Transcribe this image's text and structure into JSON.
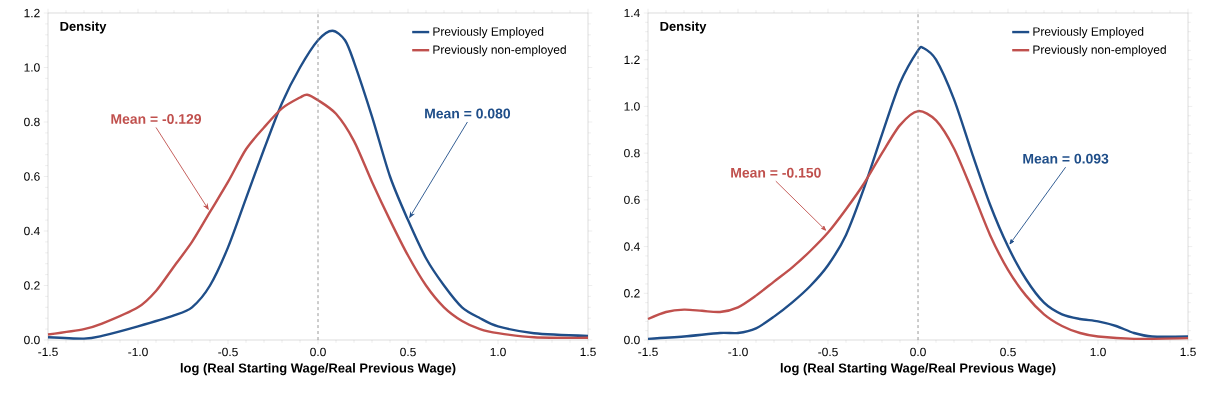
{
  "chart_data": [
    {
      "type": "line",
      "ylabel": "Density",
      "xlabel": "log (Real Starting Wage/Real Previous Wage)",
      "xlim": [
        -1.5,
        1.5
      ],
      "xticks": [
        {
          "value": -1.5,
          "label": "-1.5"
        },
        {
          "value": -1.0,
          "label": "-1.0"
        },
        {
          "value": -0.5,
          "label": "-0.5"
        },
        {
          "value": 0.0,
          "label": "0.0"
        },
        {
          "value": 0.5,
          "label": "0.5"
        },
        {
          "value": 1.0,
          "label": "1.0"
        },
        {
          "value": 1.5,
          "label": "1.5"
        }
      ],
      "ylim": [
        0,
        1.2
      ],
      "yticks": [
        {
          "value": 0,
          "label": "0.0"
        },
        {
          "value": 0.2,
          "label": "0.2"
        },
        {
          "value": 0.4,
          "label": "0.4"
        },
        {
          "value": 0.6,
          "label": "0.6"
        },
        {
          "value": 0.8,
          "label": "0.8"
        },
        {
          "value": 1.0,
          "label": "1.0"
        },
        {
          "value": 1.2,
          "label": "1.2"
        }
      ],
      "legend": "top right",
      "grid": false,
      "series": [
        {
          "name": "Previously Employed",
          "color": "#1f4e89",
          "x": [
            -1.5,
            -1.3,
            -1.2,
            -1.0,
            -0.8,
            -0.7,
            -0.6,
            -0.5,
            -0.4,
            -0.3,
            -0.2,
            -0.1,
            0.0,
            0.08,
            0.15,
            0.2,
            0.3,
            0.4,
            0.5,
            0.6,
            0.7,
            0.8,
            0.9,
            1.0,
            1.2,
            1.5
          ],
          "values": [
            0.01,
            0.005,
            0.015,
            0.05,
            0.09,
            0.12,
            0.2,
            0.34,
            0.52,
            0.7,
            0.87,
            1.0,
            1.1,
            1.135,
            1.1,
            1.02,
            0.82,
            0.6,
            0.44,
            0.3,
            0.2,
            0.12,
            0.08,
            0.05,
            0.025,
            0.015
          ]
        },
        {
          "name": "Previously non-employed",
          "color": "#c0504d",
          "x": [
            -1.5,
            -1.3,
            -1.2,
            -1.0,
            -0.9,
            -0.8,
            -0.7,
            -0.6,
            -0.5,
            -0.4,
            -0.3,
            -0.2,
            -0.1,
            -0.06,
            0.0,
            0.1,
            0.2,
            0.3,
            0.4,
            0.5,
            0.6,
            0.7,
            0.8,
            0.9,
            1.0,
            1.2,
            1.5
          ],
          "values": [
            0.02,
            0.04,
            0.06,
            0.12,
            0.18,
            0.27,
            0.36,
            0.47,
            0.58,
            0.7,
            0.78,
            0.85,
            0.89,
            0.9,
            0.88,
            0.83,
            0.73,
            0.58,
            0.44,
            0.31,
            0.2,
            0.12,
            0.07,
            0.04,
            0.025,
            0.01,
            0.008
          ]
        }
      ],
      "ref_lines": [
        {
          "axis": "x",
          "value": 0.0,
          "color": "#808080",
          "line_style": "dashed"
        }
      ],
      "annotations": [
        {
          "text": "Mean = 0.080",
          "x": 0.5,
          "y": 0.44
        },
        {
          "text": "Mean = -0.129",
          "x": -0.6,
          "y": 0.47
        }
      ]
    },
    {
      "type": "line",
      "ylabel": "Density",
      "xlabel": "log (Real Starting Wage/Real Previous Wage)",
      "xlim": [
        -1.5,
        1.5
      ],
      "xticks": [
        {
          "value": -1.5,
          "label": "-1.5"
        },
        {
          "value": -1.0,
          "label": "-1.0"
        },
        {
          "value": -0.5,
          "label": "-0.5"
        },
        {
          "value": 0.0,
          "label": "0.0"
        },
        {
          "value": 0.5,
          "label": "0.5"
        },
        {
          "value": 1.0,
          "label": "1.0"
        },
        {
          "value": 1.5,
          "label": "1.5"
        }
      ],
      "ylim": [
        0,
        1.4
      ],
      "yticks": [
        {
          "value": 0,
          "label": "0.0"
        },
        {
          "value": 0.2,
          "label": "0.2"
        },
        {
          "value": 0.4,
          "label": "0.4"
        },
        {
          "value": 0.6,
          "label": "0.6"
        },
        {
          "value": 0.8,
          "label": "0.8"
        },
        {
          "value": 1.0,
          "label": "1.0"
        },
        {
          "value": 1.2,
          "label": "1.2"
        },
        {
          "value": 1.4,
          "label": "1.4"
        }
      ],
      "legend": "top right",
      "grid": false,
      "series": [
        {
          "name": "Previously Employed",
          "color": "#1f4e89",
          "x": [
            -1.5,
            -1.3,
            -1.1,
            -1.0,
            -0.9,
            -0.8,
            -0.7,
            -0.6,
            -0.5,
            -0.4,
            -0.3,
            -0.2,
            -0.1,
            0.0,
            0.03,
            0.1,
            0.2,
            0.3,
            0.4,
            0.5,
            0.6,
            0.7,
            0.8,
            0.9,
            1.0,
            1.1,
            1.2,
            1.3,
            1.5
          ],
          "values": [
            0.005,
            0.015,
            0.03,
            0.03,
            0.05,
            0.1,
            0.16,
            0.23,
            0.32,
            0.45,
            0.65,
            0.88,
            1.1,
            1.24,
            1.25,
            1.2,
            1.03,
            0.8,
            0.58,
            0.4,
            0.26,
            0.16,
            0.11,
            0.09,
            0.08,
            0.06,
            0.03,
            0.015,
            0.015
          ]
        },
        {
          "name": "Previously non-employed",
          "color": "#c0504d",
          "x": [
            -1.5,
            -1.4,
            -1.3,
            -1.2,
            -1.1,
            -1.0,
            -0.9,
            -0.8,
            -0.7,
            -0.6,
            -0.5,
            -0.4,
            -0.3,
            -0.2,
            -0.1,
            0.0,
            0.1,
            0.2,
            0.3,
            0.4,
            0.5,
            0.6,
            0.7,
            0.8,
            0.9,
            1.0,
            1.2,
            1.5
          ],
          "values": [
            0.09,
            0.12,
            0.13,
            0.125,
            0.12,
            0.14,
            0.19,
            0.25,
            0.31,
            0.38,
            0.46,
            0.56,
            0.67,
            0.8,
            0.92,
            0.98,
            0.94,
            0.82,
            0.64,
            0.45,
            0.3,
            0.19,
            0.11,
            0.06,
            0.03,
            0.015,
            0.005,
            0.008
          ]
        }
      ],
      "ref_lines": [
        {
          "axis": "x",
          "value": 0.0,
          "color": "#808080",
          "line_style": "dashed"
        }
      ],
      "annotations": [
        {
          "text": "Mean = 0.093",
          "x": 0.5,
          "y": 0.4
        },
        {
          "text": "Mean = -0.150",
          "x": -0.5,
          "y": 0.46
        }
      ]
    }
  ]
}
